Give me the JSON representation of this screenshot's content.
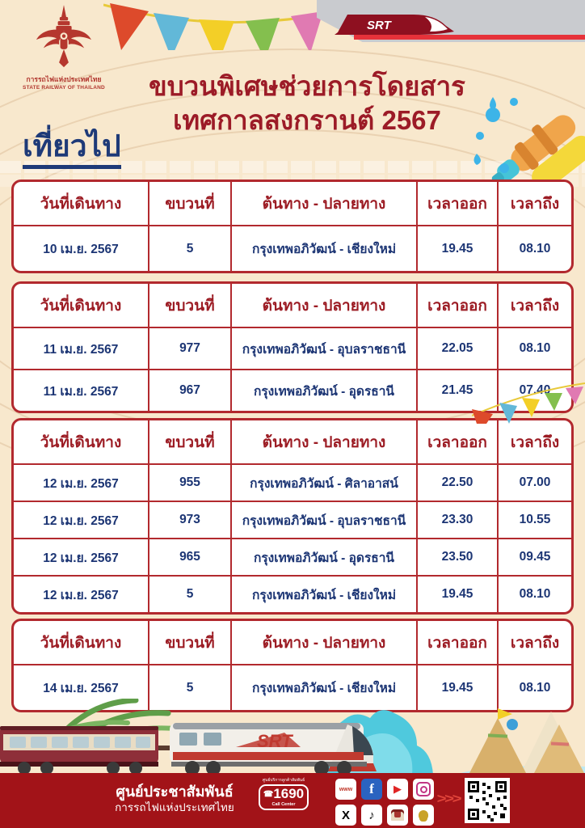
{
  "header": {
    "org_name_th": "การรถไฟแห่งประเทศไทย",
    "org_name_en": "STATE RAILWAY OF THAILAND",
    "srt_brand": "SRT",
    "title_line1": "ขบวนพิเศษช่วยการโดยสาร",
    "title_line2": "เทศกาลสงกรานต์ 2567",
    "direction_label": "เที่ยวไป"
  },
  "table_headers": [
    "วันที่เดินทาง",
    "ขบวนที่",
    "ต้นทาง - ปลายทาง",
    "เวลาออก",
    "เวลาถึง"
  ],
  "tables": [
    {
      "rows": [
        [
          "10 เม.ย. 2567",
          "5",
          "กรุงเทพอภิวัฒน์ - เชียงใหม่",
          "19.45",
          "08.10"
        ]
      ]
    },
    {
      "rows": [
        [
          "11 เม.ย. 2567",
          "977",
          "กรุงเทพอภิวัฒน์ - อุบลราชธานี",
          "22.05",
          "08.10"
        ],
        [
          "11 เม.ย. 2567",
          "967",
          "กรุงเทพอภิวัฒน์ - อุดรธานี",
          "21.45",
          "07.40"
        ]
      ]
    },
    {
      "rows": [
        [
          "12 เม.ย. 2567",
          "955",
          "กรุงเทพอภิวัฒน์ - ศิลาอาสน์",
          "22.50",
          "07.00"
        ],
        [
          "12 เม.ย. 2567",
          "973",
          "กรุงเทพอภิวัฒน์ - อุบลราชธานี",
          "23.30",
          "10.55"
        ],
        [
          "12 เม.ย. 2567",
          "965",
          "กรุงเทพอภิวัฒน์ - อุดรธานี",
          "23.50",
          "09.45"
        ],
        [
          "12 เม.ย. 2567",
          "5",
          "กรุงเทพอภิวัฒน์ - เชียงใหม่",
          "19.45",
          "08.10"
        ]
      ]
    },
    {
      "rows": [
        [
          "14 เม.ย. 2567",
          "5",
          "กรุงเทพอภิวัฒน์ - เชียงใหม่",
          "19.45",
          "08.10"
        ]
      ]
    }
  ],
  "illustration": {
    "loco_brand": "SRT"
  },
  "footer": {
    "center_line1": "ศูนย์ประชาสัมพันธ์",
    "center_line2": "การรถไฟแห่งประเทศไทย",
    "call_center_top": "ศูนย์บริการลูกค้าสัมพันธ์",
    "call_center_phone_glyph": "☎",
    "call_center_number": "1690",
    "call_center_label": "Call Center",
    "arrows": ">>>",
    "social": [
      {
        "name": "website",
        "glyph": "www"
      },
      {
        "name": "facebook",
        "glyph": "f"
      },
      {
        "name": "youtube",
        "glyph": "▶"
      },
      {
        "name": "instagram",
        "glyph": ""
      },
      {
        "name": "x",
        "glyph": "X"
      },
      {
        "name": "tiktok",
        "glyph": "♪"
      },
      {
        "name": "srt-app",
        "glyph": ""
      },
      {
        "name": "d-ticket",
        "glyph": ""
      }
    ]
  },
  "colors": {
    "background": "#f8e8cd",
    "title_red": "#9c1b27",
    "table_border_red": "#b2292e",
    "cell_navy": "#1c3574",
    "footer_red": "#a21318",
    "gray_band": "#c9cbcf",
    "accent_red_line": "#e6323a",
    "direction_blue": "#1e3a78"
  }
}
